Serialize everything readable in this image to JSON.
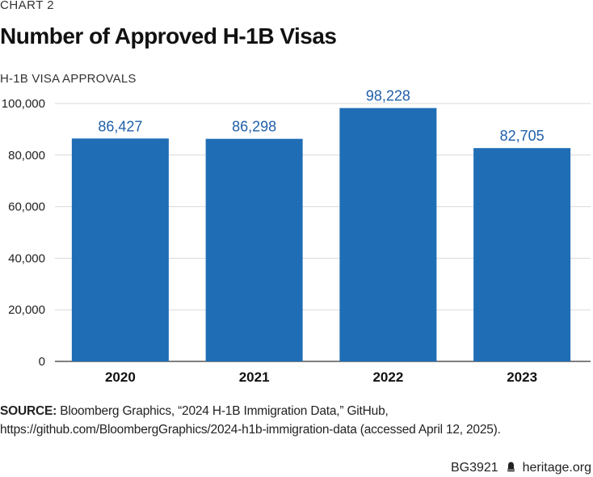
{
  "kicker": "CHART 2",
  "colors": {
    "bar": "#1f6db5",
    "value_label": "#1f5fa8",
    "grid": "#d9d9d9",
    "axis": "#333333"
  },
  "source": {
    "prefix": "SOURCE:",
    "text": "Bloomberg Graphics, “2024 H-1B Immigration Data,” GitHub, https://github.com/BloombergGraphics/2024-h1b-immigration-data (accessed April 12, 2025)."
  },
  "footer": {
    "code": "BG3921",
    "icon": "bell-icon",
    "site": "heritage.org"
  },
  "chart_data": {
    "type": "bar",
    "title": "Number of Approved H-1B Visas",
    "ylabel": "H-1B VISA APPROVALS",
    "xlabel": "",
    "categories": [
      "2020",
      "2021",
      "2022",
      "2023"
    ],
    "values": [
      86427,
      86298,
      98228,
      82705
    ],
    "value_labels": [
      "86,427",
      "86,298",
      "98,228",
      "82,705"
    ],
    "ylim": [
      0,
      100000
    ],
    "yticks": [
      0,
      20000,
      40000,
      60000,
      80000,
      100000
    ],
    "ytick_labels": [
      "0",
      "20,000",
      "40,000",
      "60,000",
      "80,000",
      "100,000"
    ],
    "grid": true
  }
}
